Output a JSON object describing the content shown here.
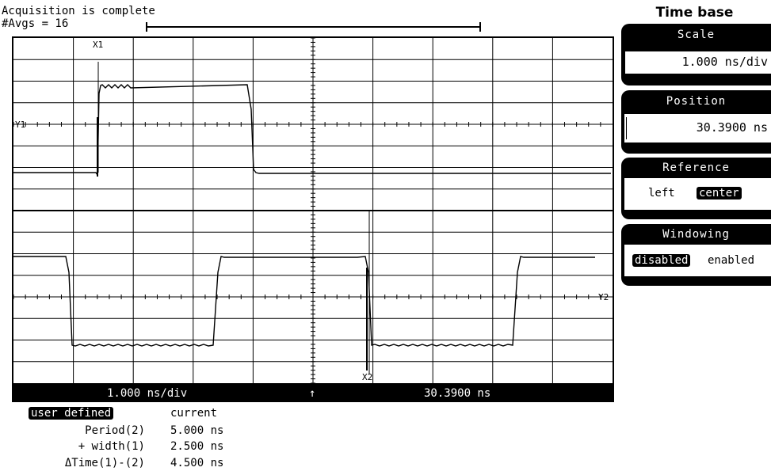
{
  "status": {
    "line1": "Acquisition is complete",
    "line2": "#Avgs = 16"
  },
  "screen": {
    "markers": {
      "x1": "X1",
      "x2": "X2",
      "y1": "Y1",
      "y2": "Y2"
    }
  },
  "bottom_bar": {
    "scale": "1.000 ns/div",
    "reference_arrow": "↑",
    "position": "30.3900 ns"
  },
  "sidebar": {
    "title": "Time base",
    "scale": {
      "label": "Scale",
      "value": "1.000 ns/div"
    },
    "position": {
      "label": "Position",
      "value": "30.3900 ns"
    },
    "reference": {
      "label": "Reference",
      "options": [
        "left",
        "center"
      ],
      "selected": "center"
    },
    "windowing": {
      "label": "Windowing",
      "options": [
        "disabled",
        "enabled"
      ],
      "selected": "disabled"
    }
  },
  "measurements": {
    "mode": "user defined",
    "header": "current",
    "rows": [
      {
        "label": "Period(2)",
        "value": "5.000 ns"
      },
      {
        "label": "+ width(1)",
        "value": "2.500 ns"
      },
      {
        "label": "ΔTime(1)-(2)",
        "value": "4.500 ns"
      }
    ]
  }
}
